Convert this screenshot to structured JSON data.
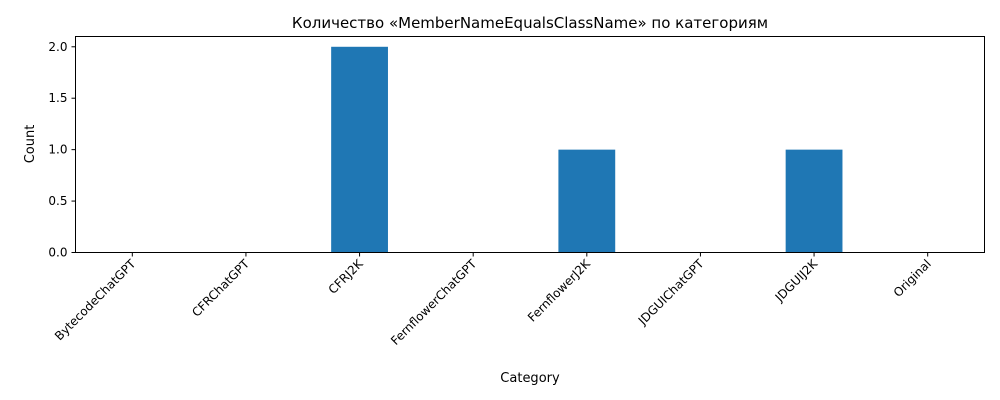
{
  "chart_data": {
    "type": "bar",
    "title": "Количество «MemberNameEqualsClassName» по категориям",
    "xlabel": "Category",
    "ylabel": "Count",
    "categories": [
      "BytecodeChatGPT",
      "CFRChatGPT",
      "CFRJ2K",
      "FernflowerChatGPT",
      "FernflowerJ2K",
      "JDGUIChatGPT",
      "JDGUIJ2K",
      "Original"
    ],
    "values": [
      0,
      0,
      2,
      0,
      1,
      0,
      1,
      0
    ],
    "ylim": [
      0,
      2.1
    ],
    "yticks": [
      "0.0",
      "0.5",
      "1.0",
      "1.5",
      "2.0"
    ],
    "grid": false,
    "bar_color": "#1f77b4"
  }
}
